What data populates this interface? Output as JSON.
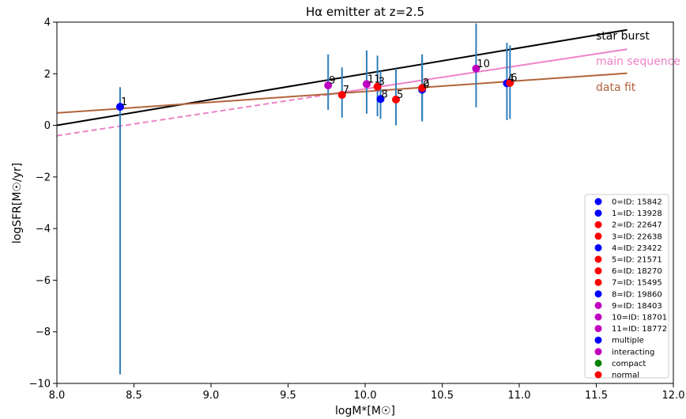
{
  "chart_data": {
    "type": "scatter",
    "title": "Hα emitter at z=2.5",
    "xlabel": "logM*[M☉]",
    "ylabel": "logSFR[M☉/yr]",
    "xlim": [
      8.0,
      12.0
    ],
    "ylim": [
      -10,
      4
    ],
    "xticks": [
      "8.0",
      "8.5",
      "9.0",
      "9.5",
      "10.0",
      "10.5",
      "11.0",
      "11.5",
      "12.0"
    ],
    "yticks": [
      "−10",
      "−8",
      "−6",
      "−4",
      "−2",
      "0",
      "2",
      "4"
    ],
    "grid": false,
    "legend_position": "lower-right",
    "points": [
      {
        "label": "0",
        "x": 10.37,
        "y": 1.38,
        "err_low": 0.15,
        "err_high": 2.75,
        "category": "multiple"
      },
      {
        "label": "1",
        "x": 8.41,
        "y": 0.72,
        "err_low": -9.65,
        "err_high": 1.48,
        "category": "multiple"
      },
      {
        "label": "2",
        "x": 10.37,
        "y": 1.45,
        "err_low": 0.2,
        "err_high": 2.6,
        "category": "normal"
      },
      {
        "label": "3",
        "x": 10.08,
        "y": 1.5,
        "err_low": 0.35,
        "err_high": 2.7,
        "category": "normal"
      },
      {
        "label": "4",
        "x": 10.92,
        "y": 1.63,
        "err_low": 0.2,
        "err_high": 3.2,
        "category": "multiple"
      },
      {
        "label": "5",
        "x": 10.2,
        "y": 1.0,
        "err_low": 0.0,
        "err_high": 2.2,
        "category": "normal"
      },
      {
        "label": "6",
        "x": 10.94,
        "y": 1.65,
        "err_low": 0.25,
        "err_high": 3.1,
        "category": "normal"
      },
      {
        "label": "7",
        "x": 9.85,
        "y": 1.18,
        "err_low": 0.3,
        "err_high": 2.25,
        "category": "normal"
      },
      {
        "label": "8",
        "x": 10.1,
        "y": 1.02,
        "err_low": 0.25,
        "err_high": 2.1,
        "category": "multiple"
      },
      {
        "label": "9",
        "x": 9.76,
        "y": 1.55,
        "err_low": 0.6,
        "err_high": 2.75,
        "category": "interacting"
      },
      {
        "label": "10",
        "x": 10.72,
        "y": 2.2,
        "err_low": 0.7,
        "err_high": 3.95,
        "category": "interacting"
      },
      {
        "label": "11",
        "x": 10.01,
        "y": 1.6,
        "err_low": 0.45,
        "err_high": 2.9,
        "category": "interacting"
      }
    ],
    "lines": [
      {
        "name": "star burst",
        "color": "#000000",
        "x": [
          8.0,
          11.7
        ],
        "y": [
          0.0,
          3.7
        ],
        "dashed_until": null
      },
      {
        "name": "main sequence",
        "color": "#ee82c8",
        "x": [
          8.0,
          11.7
        ],
        "y": [
          -0.4,
          2.95
        ],
        "dashed_until": 9.75
      },
      {
        "name": "data fit",
        "color": "#b0643a",
        "x": [
          8.0,
          11.7
        ],
        "y": [
          0.48,
          2.02
        ],
        "dashed_until": null
      }
    ],
    "errorbar_color": "#2f7fba",
    "category_colors": {
      "multiple": "#0000ff",
      "interacting": "#bf00bf",
      "compact": "#008000",
      "normal": "#ff0000"
    },
    "legend": [
      {
        "text": "0=ID: 15842",
        "color": "#0000ff"
      },
      {
        "text": "1=ID: 13928",
        "color": "#0000ff"
      },
      {
        "text": "2=ID: 22647",
        "color": "#ff0000"
      },
      {
        "text": "3=ID: 22638",
        "color": "#ff0000"
      },
      {
        "text": "4=ID: 23422",
        "color": "#0000ff"
      },
      {
        "text": "5=ID: 21571",
        "color": "#ff0000"
      },
      {
        "text": "6=ID: 18270",
        "color": "#ff0000"
      },
      {
        "text": "7=ID: 15495",
        "color": "#ff0000"
      },
      {
        "text": "8=ID: 19860",
        "color": "#0000ff"
      },
      {
        "text": "9=ID: 18403",
        "color": "#bf00bf"
      },
      {
        "text": "10=ID: 18701",
        "color": "#bf00bf"
      },
      {
        "text": "11=ID: 18772",
        "color": "#bf00bf"
      },
      {
        "text": "multiple",
        "color": "#0000ff"
      },
      {
        "text": "interacting",
        "color": "#bf00bf"
      },
      {
        "text": "compact",
        "color": "#008000"
      },
      {
        "text": "normal",
        "color": "#ff0000"
      }
    ]
  }
}
